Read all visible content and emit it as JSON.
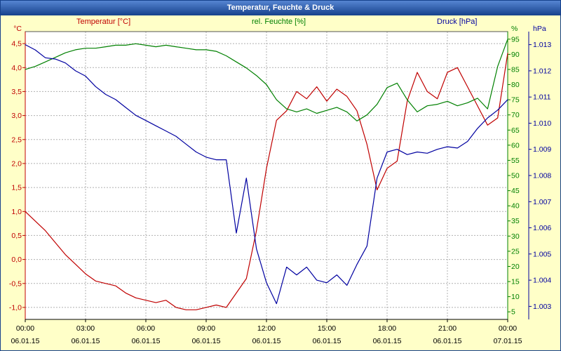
{
  "window": {
    "title": "Temperatur, Feuchte & Druck"
  },
  "header_labels": {
    "temperature": "Temperatur [°C]",
    "humidity": "rel. Feuchte [%]",
    "pressure": "Druck [hPa]"
  },
  "colors": {
    "background": "#ffffc8",
    "plot_background": "#ffffff",
    "grid": "#b0b0b0",
    "border": "#555555",
    "x_axis": "#000000",
    "titlebar": "#16418c",
    "titlebar_text": "#ffffff"
  },
  "chart_data": {
    "type": "line",
    "title": "Temperatur, Feuchte & Druck",
    "legend_position": "top",
    "grid": true,
    "x_axis": {
      "range_hours": [
        0,
        24
      ],
      "tick_hours": [
        0,
        3,
        6,
        9,
        12,
        15,
        18,
        21,
        24
      ],
      "tick_times": [
        "00:00",
        "03:00",
        "06:00",
        "09:00",
        "12:00",
        "15:00",
        "18:00",
        "21:00",
        "00:00"
      ],
      "tick_dates": [
        "06.01.15",
        "06.01.15",
        "06.01.15",
        "06.01.15",
        "06.01.15",
        "06.01.15",
        "06.01.15",
        "06.01.15",
        "07.01.15"
      ]
    },
    "axes": {
      "temperature": {
        "unit": "°C",
        "side": "left",
        "color": "#c00000",
        "min": -1.25,
        "max": 4.75,
        "tick_values": [
          4.5,
          4,
          3.5,
          3,
          2.5,
          2,
          1.5,
          1,
          0.5,
          0,
          -0.5,
          -1
        ],
        "tick_labels": [
          "4,5",
          "4,0",
          "3,5",
          "3,0",
          "2,5",
          "2,0",
          "1,5",
          "1,0",
          "0,5",
          "0,0",
          "-0,5",
          "-1,0"
        ]
      },
      "humidity": {
        "unit": "%",
        "side": "right",
        "color": "#008000",
        "min": 2.5,
        "max": 97.5,
        "tick_values": [
          95,
          90,
          85,
          80,
          75,
          70,
          65,
          60,
          55,
          50,
          45,
          40,
          35,
          30,
          25,
          20,
          15,
          10,
          5
        ],
        "tick_labels": [
          "95",
          "90",
          "85",
          "80",
          "75",
          "70",
          "65",
          "60",
          "55",
          "50",
          "45",
          "40",
          "35",
          "30",
          "25",
          "20",
          "15",
          "10",
          "5"
        ]
      },
      "pressure": {
        "unit": "hPa",
        "side": "far-right",
        "color": "#0000a0",
        "min": 1002.5,
        "max": 1013.5,
        "tick_values": [
          1013,
          1012,
          1011,
          1010,
          1009,
          1008,
          1007,
          1006,
          1005,
          1004,
          1003
        ],
        "tick_labels": [
          "1.013",
          "1.012",
          "1.011",
          "1.010",
          "1.009",
          "1.008",
          "1.007",
          "1.006",
          "1.005",
          "1.004",
          "1.003"
        ]
      }
    },
    "x_hours": [
      0,
      0.5,
      1,
      1.5,
      2,
      2.5,
      3,
      3.5,
      4,
      4.5,
      5,
      5.5,
      6,
      6.5,
      7,
      7.5,
      8,
      8.5,
      9,
      9.5,
      10,
      10.5,
      11,
      11.5,
      12,
      12.5,
      13,
      13.5,
      14,
      14.5,
      15,
      15.5,
      16,
      16.5,
      17,
      17.5,
      18,
      18.5,
      19,
      19.5,
      20,
      20.5,
      21,
      21.5,
      22,
      22.5,
      23,
      23.5,
      24
    ],
    "series": [
      {
        "name": "Temperatur [°C]",
        "axis": "temperature",
        "color": "#c00000",
        "values": [
          1.0,
          0.8,
          0.6,
          0.35,
          0.1,
          -0.1,
          -0.3,
          -0.45,
          -0.5,
          -0.55,
          -0.7,
          -0.8,
          -0.85,
          -0.9,
          -0.85,
          -1.0,
          -1.05,
          -1.05,
          -1.0,
          -0.95,
          -1.0,
          -0.7,
          -0.4,
          0.6,
          1.9,
          2.9,
          3.1,
          3.5,
          3.35,
          3.6,
          3.3,
          3.55,
          3.4,
          3.1,
          2.4,
          1.45,
          1.9,
          2.05,
          3.3,
          3.9,
          3.5,
          3.35,
          3.9,
          4.0,
          3.6,
          3.2,
          2.8,
          2.95,
          4.3
        ]
      },
      {
        "name": "rel. Feuchte [%]",
        "axis": "humidity",
        "color": "#008000",
        "values": [
          85,
          86,
          87.5,
          89,
          90.5,
          91.5,
          92,
          92,
          92.5,
          93,
          93,
          93.5,
          93,
          92.5,
          93,
          92.5,
          92,
          91.5,
          91.5,
          91,
          89.5,
          87.5,
          85.5,
          83,
          80,
          75,
          72,
          71,
          72,
          70.5,
          71.5,
          72.5,
          71,
          68,
          70,
          73.5,
          79,
          80.5,
          75,
          71,
          73,
          73.5,
          74.5,
          73,
          74,
          75.5,
          72,
          86,
          95
        ]
      },
      {
        "name": "Druck [hPa]",
        "axis": "pressure",
        "color": "#0000a0",
        "values": [
          1013.0,
          1012.8,
          1012.5,
          1012.45,
          1012.3,
          1012.0,
          1011.8,
          1011.4,
          1011.1,
          1010.9,
          1010.6,
          1010.3,
          1010.1,
          1009.9,
          1009.7,
          1009.5,
          1009.2,
          1008.9,
          1008.7,
          1008.6,
          1008.6,
          1005.8,
          1007.9,
          1005.2,
          1003.9,
          1003.1,
          1004.5,
          1004.2,
          1004.5,
          1004.0,
          1003.9,
          1004.2,
          1003.8,
          1004.6,
          1005.3,
          1007.9,
          1008.9,
          1009.0,
          1008.8,
          1008.9,
          1008.85,
          1009.0,
          1009.1,
          1009.05,
          1009.3,
          1009.8,
          1010.2,
          1010.5,
          1010.9
        ]
      }
    ]
  }
}
